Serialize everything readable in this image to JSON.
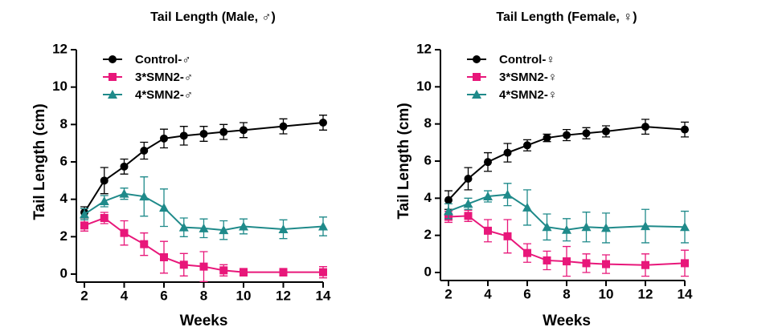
{
  "chart_data": [
    {
      "type": "line",
      "title": "Tail Length (Male, ♂)",
      "x_label": "Weeks",
      "y_label": "Tail Length (cm)",
      "x": [
        2,
        3,
        4,
        5,
        6,
        7,
        8,
        9,
        10,
        12,
        14
      ],
      "xlim": [
        2,
        14
      ],
      "xticks": [
        2,
        4,
        6,
        8,
        10,
        12,
        14
      ],
      "ylim": [
        0,
        12
      ],
      "yticks": [
        0,
        2,
        4,
        6,
        8,
        10,
        12
      ],
      "legend": "upper left",
      "series": [
        {
          "name": "Control-♂",
          "color": "#000000",
          "marker": "circle",
          "values": [
            3.3,
            5.0,
            5.75,
            6.6,
            7.25,
            7.4,
            7.5,
            7.6,
            7.7,
            7.9,
            8.1
          ],
          "errors": [
            0.3,
            0.7,
            0.4,
            0.45,
            0.5,
            0.5,
            0.4,
            0.4,
            0.4,
            0.4,
            0.4
          ]
        },
        {
          "name": "3*SMN2-♂",
          "color": "#e8177a",
          "marker": "square",
          "values": [
            2.6,
            3.0,
            2.2,
            1.6,
            0.9,
            0.5,
            0.4,
            0.2,
            0.1,
            0.1,
            0.1
          ],
          "errors": [
            0.3,
            0.3,
            0.65,
            0.6,
            0.85,
            0.6,
            0.8,
            0.3,
            0.2,
            0.2,
            0.3
          ]
        },
        {
          "name": "4*SMN2-♂",
          "color": "#1f8a8a",
          "marker": "triangle",
          "values": [
            3.2,
            3.9,
            4.3,
            4.15,
            3.55,
            2.5,
            2.45,
            2.35,
            2.55,
            2.4,
            2.55
          ],
          "errors": [
            0.3,
            0.3,
            0.3,
            1.05,
            1.0,
            0.5,
            0.5,
            0.5,
            0.4,
            0.5,
            0.5
          ]
        }
      ]
    },
    {
      "type": "line",
      "title": "Tail Length (Female, ♀)",
      "x_label": "Weeks",
      "y_label": "Tail Length (cm)",
      "x": [
        2,
        3,
        4,
        5,
        6,
        7,
        8,
        9,
        10,
        12,
        14
      ],
      "xlim": [
        2,
        14
      ],
      "xticks": [
        2,
        4,
        6,
        8,
        10,
        12,
        14
      ],
      "ylim": [
        0,
        12
      ],
      "yticks": [
        0,
        2,
        4,
        6,
        8,
        10,
        12
      ],
      "legend": "upper left",
      "series": [
        {
          "name": "Control-♀",
          "color": "#000000",
          "marker": "circle",
          "values": [
            3.9,
            5.05,
            5.95,
            6.45,
            6.85,
            7.25,
            7.4,
            7.5,
            7.6,
            7.85,
            7.7
          ],
          "errors": [
            0.5,
            0.6,
            0.5,
            0.5,
            0.3,
            0.2,
            0.3,
            0.3,
            0.3,
            0.4,
            0.4
          ]
        },
        {
          "name": "3*SMN2-♀",
          "color": "#e8177a",
          "marker": "square",
          "values": [
            3.0,
            3.05,
            2.25,
            1.95,
            1.05,
            0.65,
            0.6,
            0.5,
            0.45,
            0.4,
            0.5
          ],
          "errors": [
            0.3,
            0.3,
            0.6,
            0.9,
            0.5,
            0.5,
            0.8,
            0.5,
            0.5,
            0.6,
            0.7
          ]
        },
        {
          "name": "4*SMN2-♀",
          "color": "#1f8a8a",
          "marker": "triangle",
          "values": [
            3.3,
            3.7,
            4.1,
            4.2,
            3.5,
            2.45,
            2.3,
            2.45,
            2.4,
            2.5,
            2.45
          ],
          "errors": [
            0.4,
            0.3,
            0.3,
            0.6,
            0.95,
            0.7,
            0.6,
            0.8,
            0.8,
            0.9,
            0.85
          ]
        }
      ]
    }
  ]
}
